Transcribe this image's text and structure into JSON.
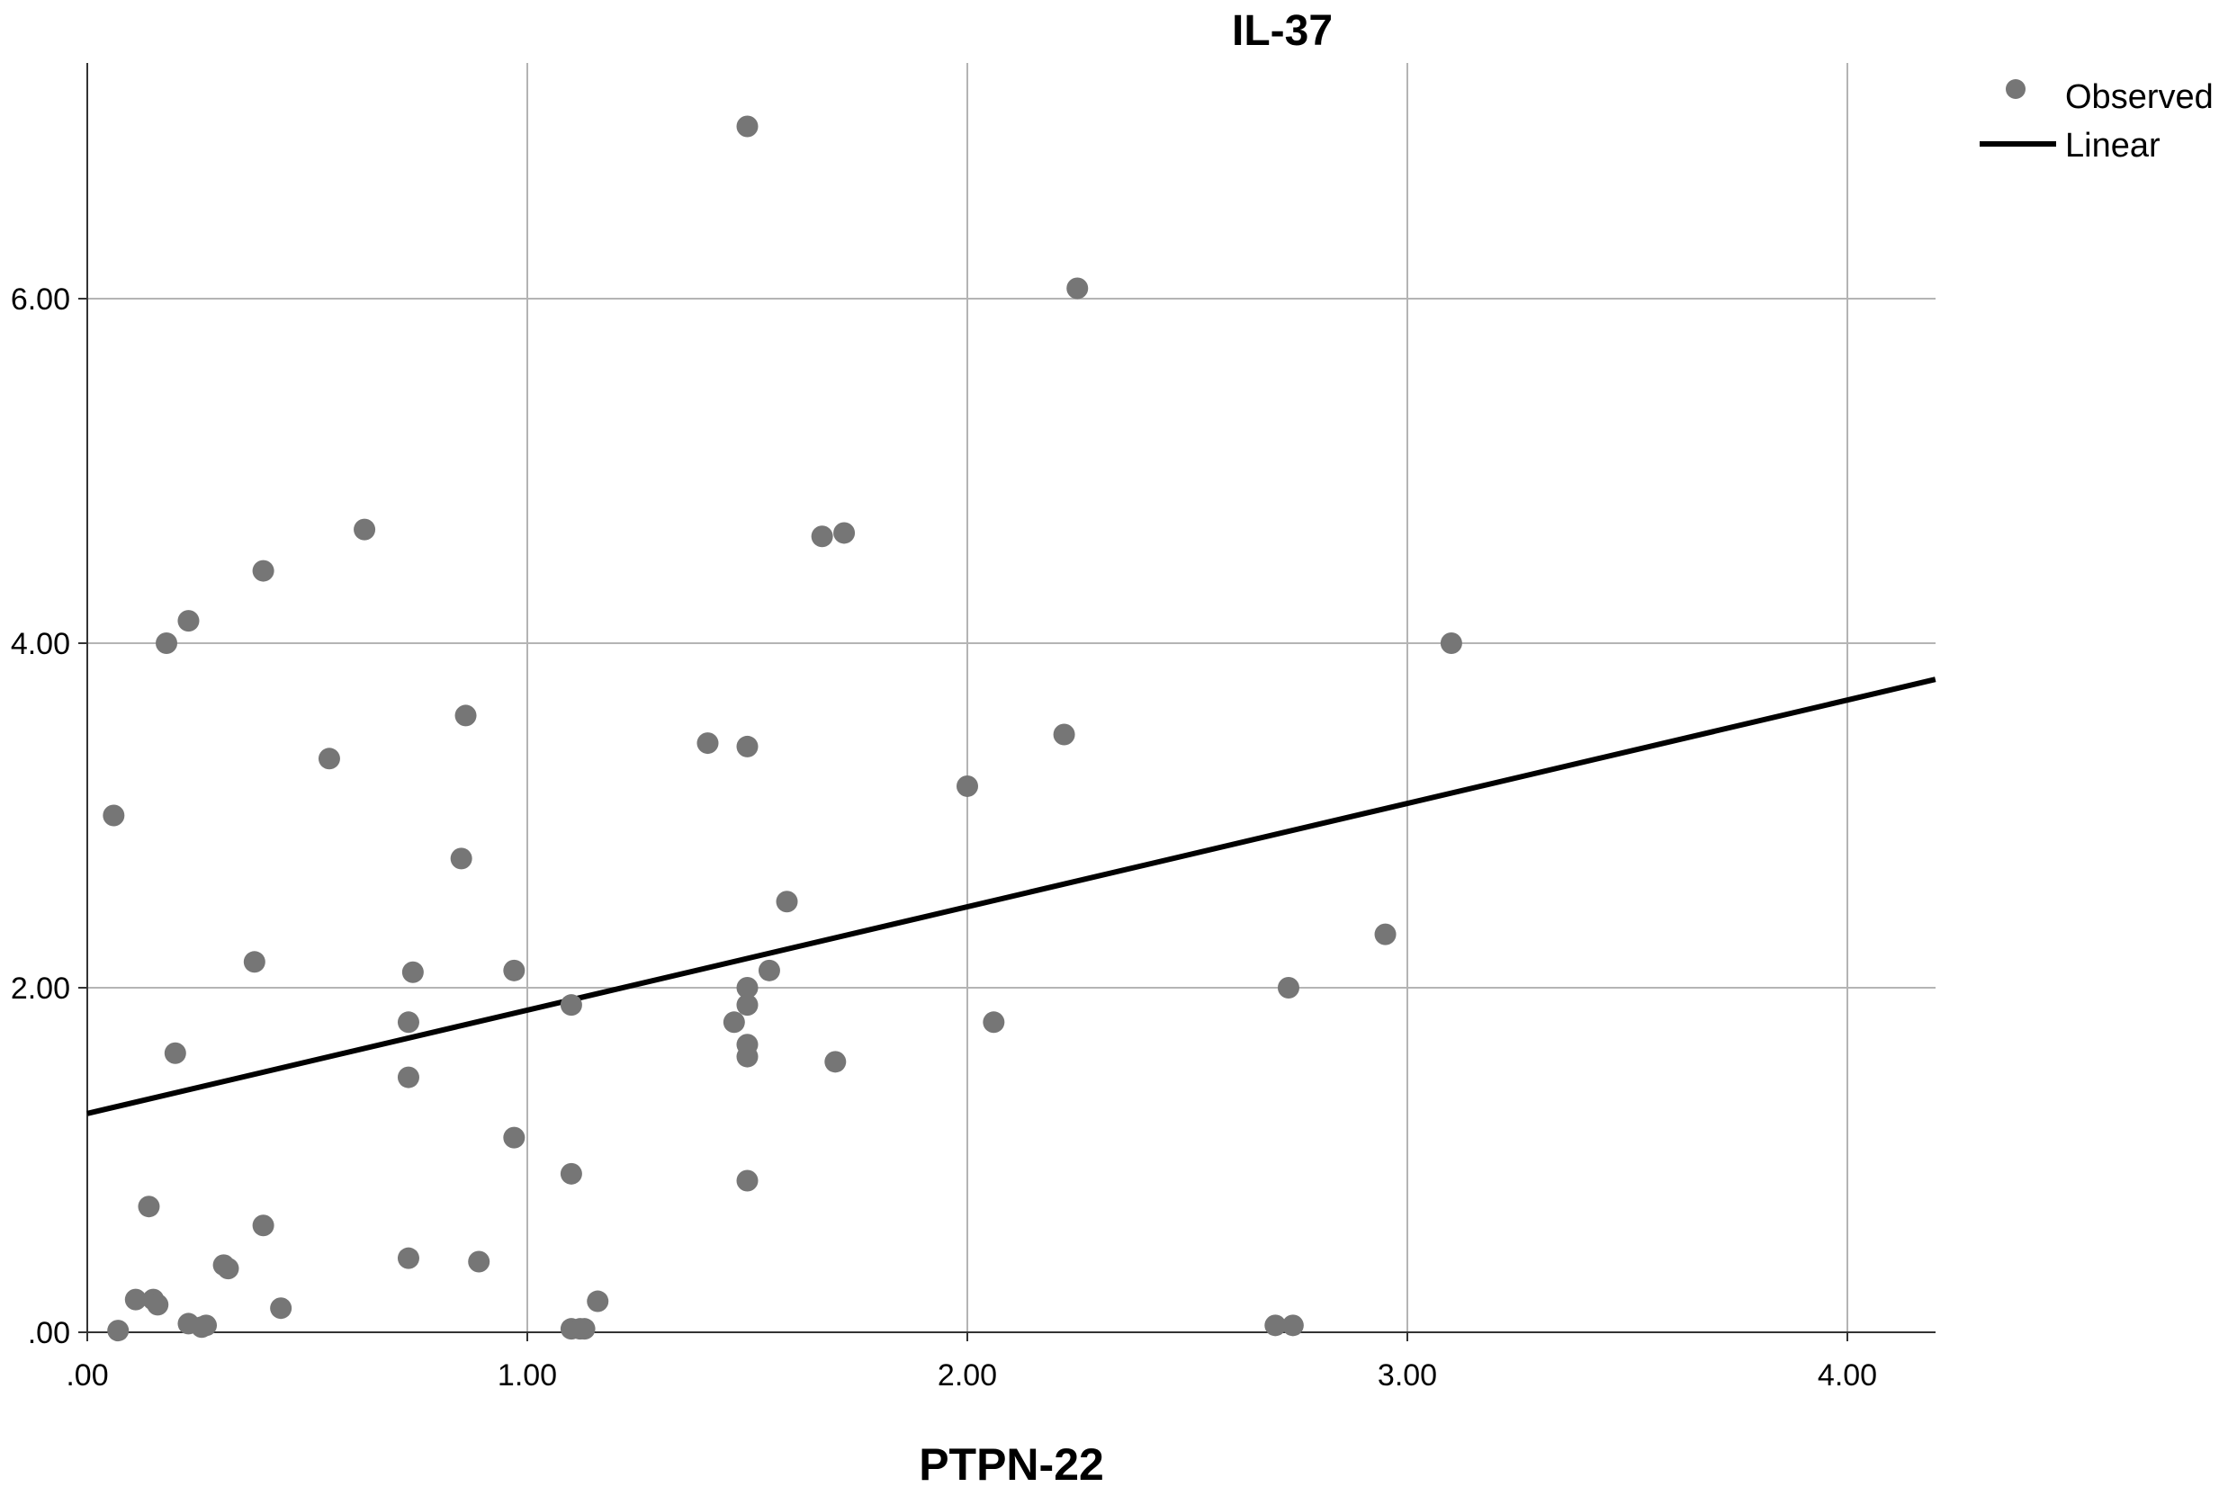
{
  "chart_data": {
    "type": "scatter",
    "title": "IL-37",
    "xlabel": "PTPN-22",
    "ylabel": "",
    "xlim": [
      0,
      4.2
    ],
    "ylim": [
      0,
      7.2
    ],
    "x_ticks": [
      {
        "value": 0,
        "label": ".00"
      },
      {
        "value": 1,
        "label": "1.00"
      },
      {
        "value": 2,
        "label": "2.00"
      },
      {
        "value": 3,
        "label": "3.00"
      },
      {
        "value": 4,
        "label": "4.00"
      }
    ],
    "y_ticks": [
      {
        "value": 0,
        "label": ".00"
      },
      {
        "value": 2,
        "label": "2.00"
      },
      {
        "value": 4,
        "label": "4.00"
      },
      {
        "value": 6,
        "label": "6.00"
      }
    ],
    "grid": true,
    "legend": {
      "position": "top-right",
      "entries": [
        {
          "label": "Observed",
          "kind": "point"
        },
        {
          "label": "Linear",
          "kind": "line"
        }
      ]
    },
    "colors": {
      "points": "#767676",
      "line": "#000000",
      "grid": "#b4b4b4",
      "axis": "#333333"
    },
    "series": [
      {
        "name": "Observed",
        "kind": "scatter",
        "points": [
          [
            0.06,
            3.0
          ],
          [
            0.07,
            0.01
          ],
          [
            0.11,
            0.19
          ],
          [
            0.14,
            0.73
          ],
          [
            0.15,
            0.19
          ],
          [
            0.16,
            0.16
          ],
          [
            0.18,
            4.0
          ],
          [
            0.2,
            1.62
          ],
          [
            0.23,
            4.13
          ],
          [
            0.23,
            0.05
          ],
          [
            0.26,
            0.03
          ],
          [
            0.27,
            0.04
          ],
          [
            0.31,
            0.39
          ],
          [
            0.32,
            0.37
          ],
          [
            0.38,
            2.15
          ],
          [
            0.4,
            0.62
          ],
          [
            0.4,
            4.42
          ],
          [
            0.44,
            0.14
          ],
          [
            0.55,
            3.33
          ],
          [
            0.63,
            4.66
          ],
          [
            0.73,
            1.8
          ],
          [
            0.73,
            1.48
          ],
          [
            0.73,
            0.43
          ],
          [
            0.74,
            2.09
          ],
          [
            0.85,
            2.75
          ],
          [
            0.86,
            3.58
          ],
          [
            0.89,
            0.41
          ],
          [
            0.97,
            1.13
          ],
          [
            0.97,
            2.1
          ],
          [
            1.1,
            0.92
          ],
          [
            1.1,
            1.9
          ],
          [
            1.1,
            0.02
          ],
          [
            1.12,
            0.02
          ],
          [
            1.13,
            0.02
          ],
          [
            1.16,
            0.18
          ],
          [
            1.41,
            3.42
          ],
          [
            1.47,
            1.8
          ],
          [
            1.5,
            7.0
          ],
          [
            1.5,
            3.4
          ],
          [
            1.5,
            2.0
          ],
          [
            1.5,
            1.9
          ],
          [
            1.5,
            1.67
          ],
          [
            1.5,
            1.6
          ],
          [
            1.5,
            0.88
          ],
          [
            1.55,
            2.1
          ],
          [
            1.59,
            2.5
          ],
          [
            1.67,
            4.62
          ],
          [
            1.7,
            1.57
          ],
          [
            1.72,
            4.64
          ],
          [
            2.0,
            3.17
          ],
          [
            2.06,
            1.8
          ],
          [
            2.22,
            3.47
          ],
          [
            2.25,
            6.06
          ],
          [
            2.7,
            0.04
          ],
          [
            2.73,
            2.0
          ],
          [
            2.74,
            0.04
          ],
          [
            2.95,
            2.31
          ],
          [
            3.1,
            4.0
          ]
        ]
      },
      {
        "name": "Linear",
        "kind": "line",
        "points": [
          [
            0.0,
            1.27
          ],
          [
            4.2,
            3.79
          ]
        ]
      }
    ]
  }
}
